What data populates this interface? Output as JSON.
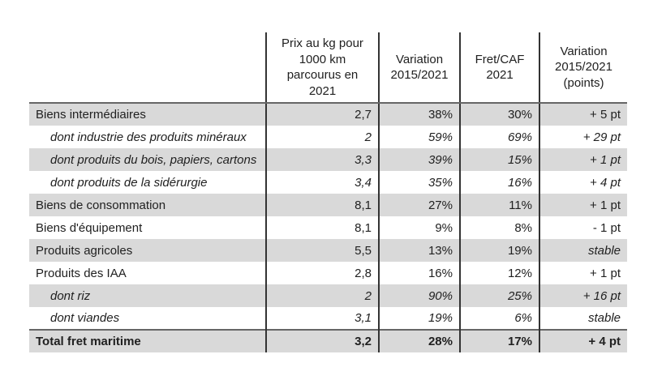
{
  "table": {
    "header": {
      "labels": "",
      "prix": "Prix au kg pour\n1000 km\nparcourus en\n2021",
      "variation": "Variation\n2015/2021",
      "fret": "Fret/CAF\n2021",
      "points": "Variation\n2015/2021\n(points)"
    },
    "rows": [
      {
        "label": "Biens intermédiaires",
        "prix": "2,7",
        "variation": "38%",
        "fret": "30%",
        "points": "+ 5 pt"
      },
      {
        "label": "dont industrie des produits minéraux",
        "prix": "2",
        "variation": "59%",
        "fret": "69%",
        "points": "+ 29 pt"
      },
      {
        "label": "dont produits du bois, papiers, cartons",
        "prix": "3,3",
        "variation": "39%",
        "fret": "15%",
        "points": "+ 1 pt"
      },
      {
        "label": "dont produits de la sidérurgie",
        "prix": "3,4",
        "variation": "35%",
        "fret": "16%",
        "points": "+ 4 pt"
      },
      {
        "label": "Biens de consommation",
        "prix": "8,1",
        "variation": "27%",
        "fret": "11%",
        "points": "+ 1 pt"
      },
      {
        "label": "Biens d'équipement",
        "prix": "8,1",
        "variation": "9%",
        "fret": "8%",
        "points": "- 1 pt"
      },
      {
        "label": "Produits agricoles",
        "prix": "5,5",
        "variation": "13%",
        "fret": "19%",
        "points": "stable"
      },
      {
        "label": "Produits des IAA",
        "prix": "2,8",
        "variation": "16%",
        "fret": "12%",
        "points": "+ 1 pt"
      },
      {
        "label": "dont riz",
        "prix": "2",
        "variation": "90%",
        "fret": "25%",
        "points": "+ 16 pt"
      },
      {
        "label": "dont viandes",
        "prix": "3,1",
        "variation": "19%",
        "fret": "6%",
        "points": "stable"
      },
      {
        "label": "Total fret maritime",
        "prix": "3,2",
        "variation": "28%",
        "fret": "17%",
        "points": "+ 4 pt"
      }
    ]
  },
  "colors": {
    "row_shaded": "#d9d9d9",
    "grid_vertical": "#333333",
    "grid_horizontal": "#666666",
    "text": "#212121"
  }
}
